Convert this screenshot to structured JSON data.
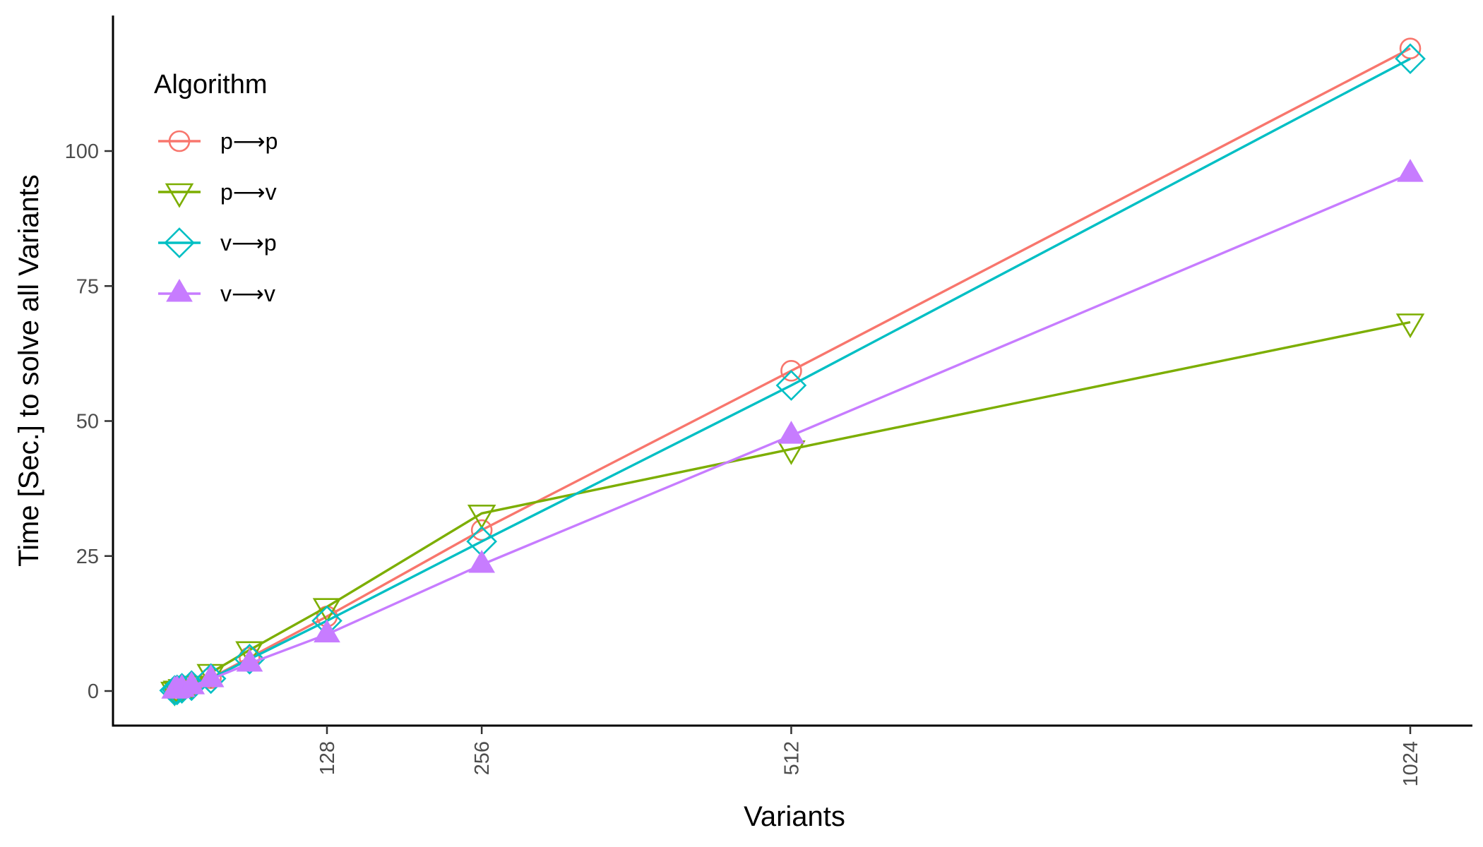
{
  "chart_data": {
    "type": "line",
    "title": "",
    "xlabel": "Variants",
    "ylabel": "Time [Sec.] to solve all Variants",
    "xlim": [
      -60,
      1075
    ],
    "ylim": [
      -6,
      125
    ],
    "x_ticks": [
      128,
      256,
      512,
      1024
    ],
    "y_ticks": [
      0,
      25,
      50,
      75,
      100
    ],
    "grid": false,
    "legend": {
      "title": "Algorithm",
      "position": "top-left"
    },
    "x": [
      2,
      4,
      8,
      16,
      32,
      64,
      128,
      256,
      512,
      1024
    ],
    "series": [
      {
        "name": "p⟶p",
        "color": "#F8766D",
        "marker": "circle-open",
        "values": [
          0.1,
          0.2,
          0.5,
          1.0,
          2.4,
          6.2,
          13.8,
          29.8,
          59.3,
          119.0
        ]
      },
      {
        "name": "p⟶v",
        "color": "#7CAE00",
        "marker": "triangle-down-open",
        "values": [
          0.1,
          0.3,
          0.6,
          1.2,
          3.4,
          7.6,
          15.6,
          32.9,
          44.8,
          68.3
        ]
      },
      {
        "name": "v⟶p",
        "color": "#00BFC4",
        "marker": "diamond-open",
        "values": [
          0.1,
          0.2,
          0.5,
          1.0,
          2.3,
          5.9,
          13.0,
          27.7,
          56.6,
          117.1
        ]
      },
      {
        "name": "v⟶v",
        "color": "#C77CFF",
        "marker": "triangle-up-filled",
        "values": [
          0.1,
          0.2,
          0.4,
          0.9,
          2.2,
          5.1,
          10.5,
          23.4,
          47.3,
          95.8
        ]
      }
    ]
  }
}
